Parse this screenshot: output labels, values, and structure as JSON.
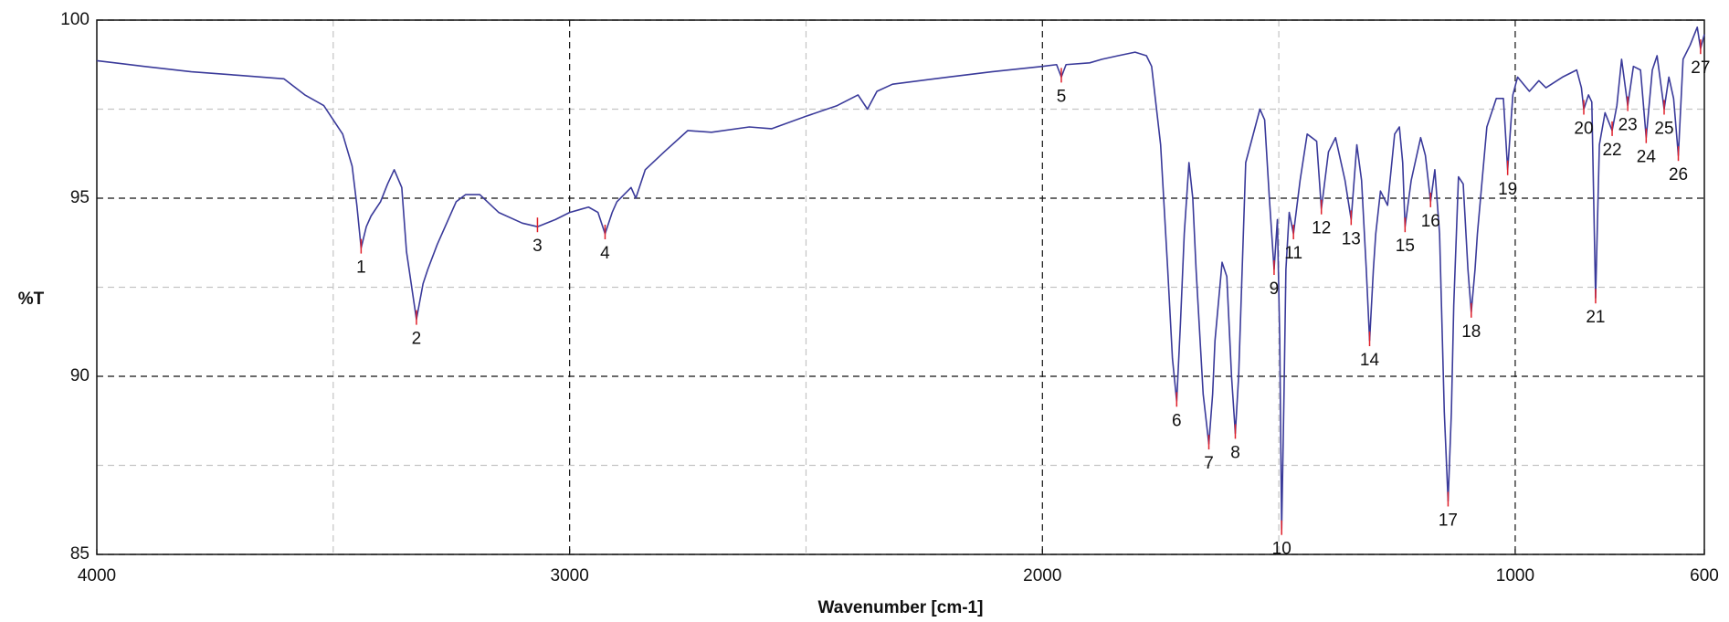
{
  "chart_data": {
    "type": "line",
    "xlabel": "Wavenumber [cm-1]",
    "ylabel": "%T",
    "xlim": [
      4000,
      600
    ],
    "ylim": [
      85,
      100
    ],
    "xticks": [
      4000,
      3000,
      2000,
      1000,
      600
    ],
    "yticks": [
      85,
      90,
      95,
      100
    ],
    "xgrid": [
      3000,
      2000,
      1000
    ],
    "xminor": [
      3500,
      2500,
      1500
    ],
    "yminor": [
      87.5,
      92.5,
      97.5
    ],
    "grid": true,
    "color": "#3a3a9a",
    "peak_color": "#e0202a",
    "x": [
      4000,
      3900,
      3800,
      3700,
      3604,
      3560,
      3520,
      3480,
      3460,
      3450,
      3441,
      3430,
      3420,
      3400,
      3385,
      3371,
      3355,
      3345,
      3324,
      3310,
      3300,
      3280,
      3260,
      3240,
      3220,
      3190,
      3150,
      3100,
      3068,
      3030,
      3000,
      2960,
      2940,
      2925,
      2910,
      2900,
      2870,
      2860,
      2840,
      2800,
      2750,
      2700,
      2620,
      2573,
      2500,
      2434,
      2390,
      2370,
      2350,
      2317,
      2200,
      2107,
      2000,
      1970,
      1960,
      1950,
      1900,
      1874,
      1840,
      1804,
      1780,
      1769,
      1750,
      1735,
      1725,
      1716,
      1708,
      1700,
      1690,
      1682,
      1675,
      1660,
      1648,
      1640,
      1635,
      1620,
      1610,
      1600,
      1592,
      1585,
      1580,
      1570,
      1550,
      1540,
      1530,
      1520,
      1510,
      1503,
      1498,
      1494,
      1489,
      1485,
      1478,
      1469,
      1455,
      1440,
      1420,
      1410,
      1395,
      1380,
      1360,
      1347,
      1335,
      1325,
      1315,
      1308,
      1300,
      1295,
      1285,
      1270,
      1255,
      1245,
      1238,
      1233,
      1220,
      1200,
      1190,
      1179,
      1170,
      1160,
      1150,
      1142,
      1135,
      1130,
      1120,
      1110,
      1100,
      1093,
      1085,
      1080,
      1060,
      1040,
      1025,
      1016,
      1005,
      995,
      970,
      950,
      935,
      900,
      870,
      860,
      855,
      845,
      838,
      830,
      822,
      810,
      795,
      785,
      775,
      762,
      750,
      735,
      723,
      710,
      700,
      685,
      675,
      665,
      655,
      645,
      630,
      615,
      608,
      600
    ],
    "values": [
      98.86,
      98.7,
      98.55,
      98.45,
      98.35,
      97.9,
      97.6,
      96.8,
      95.9,
      94.8,
      93.6,
      94.2,
      94.5,
      94.9,
      95.4,
      95.8,
      95.3,
      93.5,
      91.6,
      92.6,
      93.0,
      93.7,
      94.3,
      94.9,
      95.1,
      95.1,
      94.6,
      94.3,
      94.2,
      94.4,
      94.6,
      94.75,
      94.6,
      94.0,
      94.6,
      94.9,
      95.3,
      95.0,
      95.8,
      96.3,
      96.9,
      96.85,
      97.0,
      96.95,
      97.3,
      97.6,
      97.9,
      97.5,
      98.0,
      98.2,
      98.4,
      98.55,
      98.7,
      98.75,
      98.4,
      98.75,
      98.8,
      98.9,
      99.0,
      99.1,
      99.0,
      98.7,
      96.5,
      93.0,
      90.5,
      89.3,
      91.5,
      94.0,
      96.0,
      95.0,
      93.0,
      89.5,
      88.1,
      89.5,
      91.0,
      93.2,
      92.8,
      90.0,
      88.4,
      90.0,
      92.0,
      96.0,
      97.0,
      97.5,
      97.2,
      95.0,
      93.0,
      94.4,
      91.0,
      85.7,
      89.5,
      93.0,
      94.6,
      94.0,
      95.5,
      96.8,
      96.6,
      94.7,
      96.3,
      96.7,
      95.5,
      94.4,
      96.5,
      95.5,
      93.0,
      91.0,
      93.0,
      94.0,
      95.2,
      94.8,
      96.8,
      97.0,
      96.0,
      94.2,
      95.5,
      96.7,
      96.2,
      94.9,
      95.8,
      94.0,
      89.0,
      86.5,
      89.0,
      92.0,
      95.6,
      95.4,
      93.0,
      91.8,
      93.0,
      94.0,
      97.0,
      97.8,
      97.8,
      95.8,
      97.9,
      98.4,
      98.0,
      98.3,
      98.1,
      98.4,
      98.6,
      98.1,
      97.5,
      97.9,
      97.7,
      92.2,
      96.5,
      97.4,
      96.9,
      97.6,
      98.9,
      97.6,
      98.7,
      98.6,
      96.7,
      98.6,
      99.0,
      97.5,
      98.4,
      97.8,
      96.2,
      98.9,
      99.3,
      99.8,
      99.2,
      99.6
    ],
    "peak_x": [
      3441,
      3324,
      3068,
      2925,
      1960,
      1716,
      1648,
      1592,
      1510,
      1494,
      1469,
      1410,
      1347,
      1308,
      1233,
      1179,
      1142,
      1093,
      1016,
      855,
      830,
      795,
      762,
      723,
      685,
      655,
      608
    ],
    "peak_y": [
      93.6,
      91.6,
      94.2,
      94.0,
      98.4,
      89.3,
      88.1,
      88.4,
      93.0,
      85.7,
      94.0,
      94.7,
      94.4,
      91.0,
      94.2,
      94.9,
      86.5,
      91.8,
      95.8,
      97.5,
      92.2,
      96.9,
      97.6,
      96.7,
      97.5,
      96.2,
      99.2
    ],
    "peak_labels": [
      "1",
      "2",
      "3",
      "4",
      "5",
      "6",
      "7",
      "8",
      "9",
      "10",
      "11",
      "12",
      "13",
      "14",
      "15",
      "16",
      "17",
      "18",
      "19",
      "20",
      "21",
      "22",
      "23",
      "24",
      "25",
      "26",
      "27"
    ]
  }
}
